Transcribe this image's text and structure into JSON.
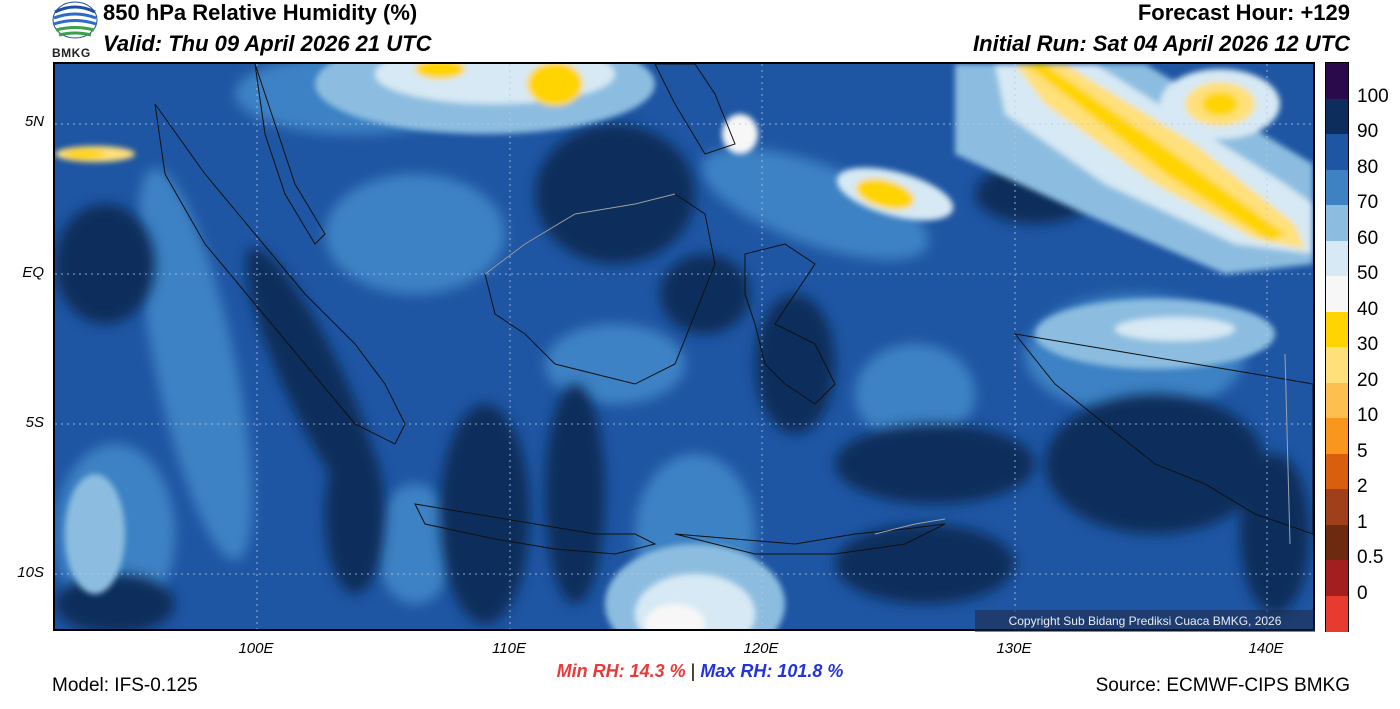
{
  "header": {
    "title": "850 hPa Relative Humidity (%)",
    "valid": "Valid: Thu 09 April 2026 21 UTC",
    "forecast_hour": "Forecast Hour: +129",
    "initial_run": "Initial Run: Sat 04 April 2026 12 UTC",
    "logo_text": "BMKG"
  },
  "map": {
    "lat_labels": [
      "5N",
      "EQ",
      "5S",
      "10S"
    ],
    "lon_labels": [
      "100E",
      "110E",
      "120E",
      "130E",
      "140E"
    ],
    "copyright": "Copyright Sub Bidang Prediksi Cuaca BMKG, 2026"
  },
  "colorbar": {
    "labels": [
      "100",
      "90",
      "80",
      "70",
      "60",
      "50",
      "40",
      "30",
      "20",
      "10",
      "5",
      "2",
      "1",
      "0.5",
      "0"
    ],
    "colors": [
      "#2a0a4a",
      "#0d2d5c",
      "#1f56a3",
      "#3e82c4",
      "#8cbde0",
      "#d6e9f4",
      "#f7f7f7",
      "#ffd400",
      "#ffe07a",
      "#fdc050",
      "#f9961e",
      "#d95f0e",
      "#a0401a",
      "#6e2a10",
      "#a31e1e",
      "#e63b2e"
    ]
  },
  "stats": {
    "min_rh": "Min RH:  14.3 %",
    "separator": "|",
    "max_rh": "Max RH: 101.8 %"
  },
  "footer": {
    "model": "Model: IFS-0.125",
    "source": "Source: ECMWF-CIPS BMKG"
  }
}
